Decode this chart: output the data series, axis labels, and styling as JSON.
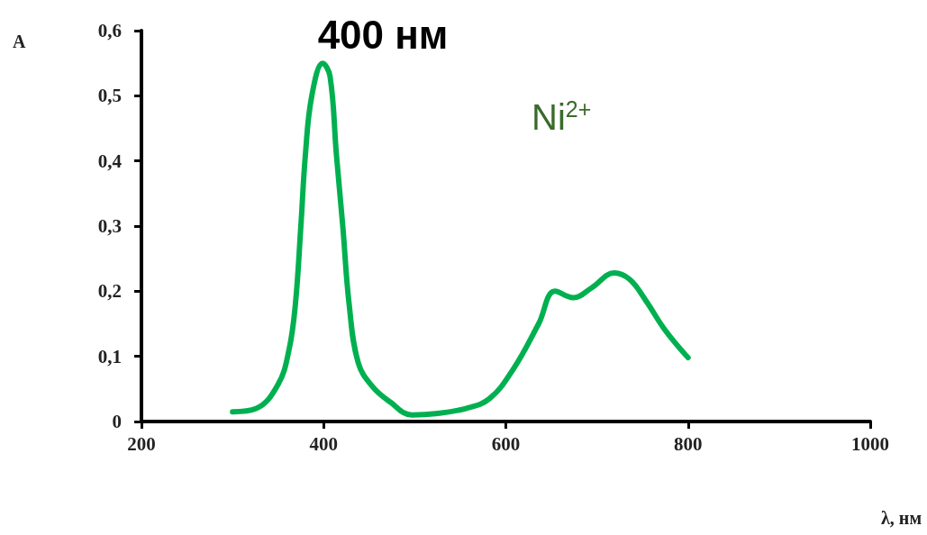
{
  "chart_data": {
    "type": "line",
    "xlabel": "λ, нм",
    "ylabel": "A",
    "annotations": [
      "400 нм",
      "Ni$^{2+}$"
    ],
    "x": [
      300,
      326,
      350,
      362,
      369,
      375,
      380,
      387,
      399,
      407,
      414,
      421,
      428,
      438,
      454,
      473,
      497,
      523,
      556,
      582,
      608,
      636,
      654,
      674,
      694,
      719,
      736,
      753,
      775,
      800
    ],
    "series": [
      {
        "color": "#00b050",
        "values": [
          0.015,
          0.02,
          0.057,
          0.11,
          0.18,
          0.3,
          0.41,
          0.5,
          0.55,
          0.53,
          0.41,
          0.3,
          0.18,
          0.09,
          0.053,
          0.03,
          0.01,
          0.012,
          0.02,
          0.035,
          0.08,
          0.15,
          0.2,
          0.19,
          0.205,
          0.228,
          0.218,
          0.187,
          0.14,
          0.098
        ]
      }
    ],
    "xlim": [
      200,
      1000
    ],
    "xticks": [
      200,
      400,
      600,
      800,
      1000
    ],
    "ylim": [
      0,
      0.6
    ],
    "yticks": [
      0,
      {
        "value": 0.1,
        "label": "0,1"
      },
      {
        "value": 0.2,
        "label": "0,2"
      },
      {
        "value": 0.3,
        "label": "0,3"
      },
      {
        "value": 0.4,
        "label": "0,4"
      },
      {
        "value": 0.5,
        "label": "0,5"
      },
      {
        "value": 0.6,
        "label": "0,6"
      }
    ],
    "grid": false,
    "marker": "none",
    "line_style": "solid"
  }
}
